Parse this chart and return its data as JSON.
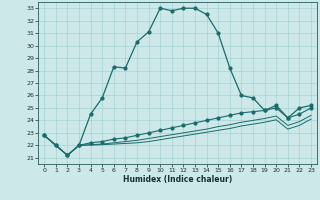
{
  "xlabel": "Humidex (Indice chaleur)",
  "ylabel": "",
  "background_color": "#cce8e8",
  "line_color": "#1a6b6b",
  "xlim": [
    -0.5,
    23.5
  ],
  "ylim": [
    20.5,
    33.5
  ],
  "yticks": [
    21,
    22,
    23,
    24,
    25,
    26,
    27,
    28,
    29,
    30,
    31,
    32,
    33
  ],
  "xticks": [
    0,
    1,
    2,
    3,
    4,
    5,
    6,
    7,
    8,
    9,
    10,
    11,
    12,
    13,
    14,
    15,
    16,
    17,
    18,
    19,
    20,
    21,
    22,
    23
  ],
  "series1_x": [
    0,
    1,
    2,
    3,
    4,
    5,
    6,
    7,
    8,
    9,
    10,
    11,
    12,
    13,
    14,
    15,
    16,
    17,
    18,
    19,
    20,
    21,
    22,
    23
  ],
  "series1_y": [
    22.8,
    22.0,
    21.2,
    22.0,
    24.5,
    25.8,
    28.3,
    28.2,
    30.3,
    31.1,
    33.0,
    32.8,
    33.0,
    33.0,
    32.5,
    31.0,
    28.2,
    26.0,
    25.8,
    24.8,
    25.2,
    24.2,
    25.0,
    25.2
  ],
  "series2_x": [
    0,
    1,
    2,
    3,
    4,
    5,
    6,
    7,
    8,
    9,
    10,
    11,
    12,
    13,
    14,
    15,
    16,
    17,
    18,
    19,
    20,
    21,
    22,
    23
  ],
  "series2_y": [
    22.8,
    22.0,
    21.2,
    22.0,
    22.2,
    22.3,
    22.5,
    22.6,
    22.8,
    23.0,
    23.2,
    23.4,
    23.6,
    23.8,
    24.0,
    24.2,
    24.4,
    24.6,
    24.7,
    24.8,
    25.0,
    24.2,
    24.5,
    25.0
  ],
  "series3_x": [
    0,
    1,
    2,
    3,
    4,
    5,
    6,
    7,
    8,
    9,
    10,
    11,
    12,
    13,
    14,
    15,
    16,
    17,
    18,
    19,
    20,
    21,
    22,
    23
  ],
  "series3_y": [
    22.8,
    22.0,
    21.2,
    22.0,
    22.05,
    22.1,
    22.2,
    22.3,
    22.4,
    22.55,
    22.7,
    22.85,
    23.0,
    23.15,
    23.3,
    23.5,
    23.65,
    23.85,
    24.0,
    24.15,
    24.35,
    23.6,
    23.9,
    24.4
  ],
  "series4_x": [
    0,
    1,
    2,
    3,
    4,
    5,
    6,
    7,
    8,
    9,
    10,
    11,
    12,
    13,
    14,
    15,
    16,
    17,
    18,
    19,
    20,
    21,
    22,
    23
  ],
  "series4_y": [
    22.8,
    22.0,
    21.2,
    22.0,
    22.02,
    22.05,
    22.1,
    22.15,
    22.2,
    22.3,
    22.45,
    22.6,
    22.75,
    22.9,
    23.05,
    23.2,
    23.35,
    23.55,
    23.7,
    23.85,
    24.05,
    23.3,
    23.6,
    24.1
  ]
}
